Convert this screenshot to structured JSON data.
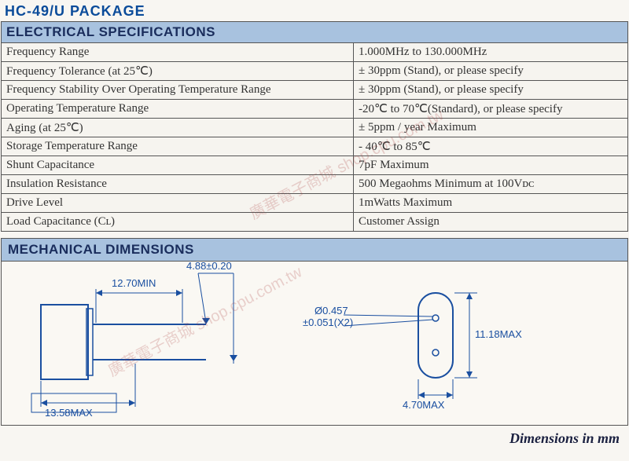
{
  "title": "HC-49/U PACKAGE",
  "sections": {
    "elec_header": "ELECTRICAL SPECIFICATIONS",
    "mech_header": "MECHANICAL DIMENSIONS"
  },
  "spec_table": {
    "rows": [
      {
        "param": "Frequency Range",
        "value": "1.000MHz to 130.000MHz"
      },
      {
        "param": "Frequency Tolerance (at 25℃)",
        "value": "± 30ppm (Stand), or please specify"
      },
      {
        "param": "Frequency Stability Over Operating Temperature Range",
        "value": "± 30ppm (Stand), or please specify"
      },
      {
        "param": "Operating Temperature Range",
        "value": "-20℃ to 70℃(Standard), or please specify"
      },
      {
        "param": "Aging (at 25℃)",
        "value": "± 5ppm / year Maximum"
      },
      {
        "param": "Storage Temperature Range",
        "value": "- 40℃ to 85℃"
      },
      {
        "param": "Shunt Capacitance",
        "value": "7pF Maximum"
      },
      {
        "param": "Insulation Resistance",
        "value": "500 Megaohms Minimum at 100Vᴅᴄ"
      },
      {
        "param": "Drive Level",
        "value": "1mWatts Maximum"
      },
      {
        "param": "Load Capacitance (Cʟ)",
        "value": "Customer Assign"
      }
    ]
  },
  "diagram": {
    "dims": {
      "pin_length": "12.70MIN",
      "can_width": "4.88±0.20",
      "body_height": "13.58MAX",
      "lead_dia": "Ø0.457",
      "lead_tol": "±0.051(X2)",
      "oval_height": "11.18MAX",
      "oval_width": "4.70MAX"
    },
    "colors": {
      "line": "#1a4fa0",
      "text": "#1a4fa0",
      "bg": "#faf8f3"
    }
  },
  "footer": "Dimensions in mm",
  "watermark_text": "廣華電子商城 shop.cpu.com.tw"
}
